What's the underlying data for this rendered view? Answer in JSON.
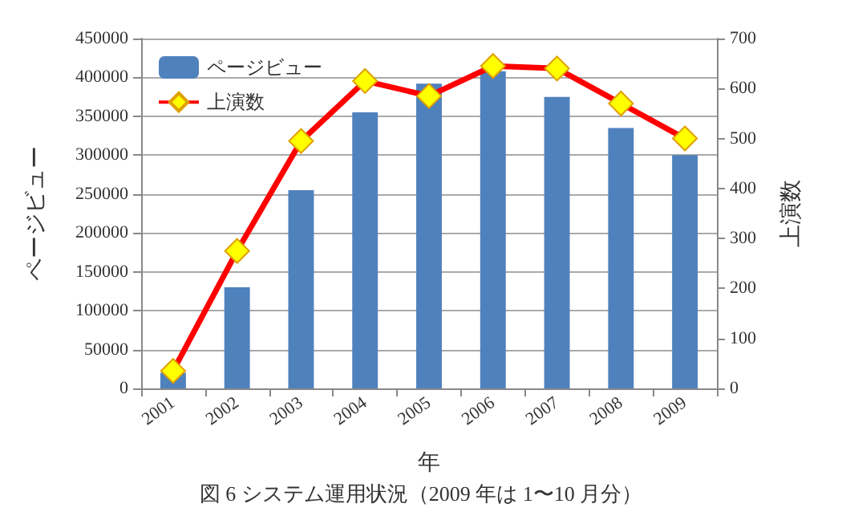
{
  "chart_data": {
    "type": "bar",
    "xlabel": "年",
    "ylabel": "ページビュー",
    "y2label": "上演数",
    "categories": [
      "2001",
      "2002",
      "2003",
      "2004",
      "2005",
      "2006",
      "2007",
      "2008",
      "2009"
    ],
    "series": [
      {
        "name": "ページビュー",
        "color": "#4f81bd",
        "values": [
          20000,
          130000,
          255000,
          355000,
          392000,
          408000,
          375000,
          335000,
          300000
        ]
      },
      {
        "name": "上演数",
        "type": "line",
        "axis": "y2",
        "color": "#ff0000",
        "marker": "diamond",
        "values": [
          35,
          275,
          495,
          615,
          585,
          645,
          640,
          570,
          500
        ]
      }
    ],
    "ylim": [
      0,
      450000
    ],
    "yticks": [
      0,
      50000,
      100000,
      150000,
      200000,
      250000,
      300000,
      350000,
      400000,
      450000
    ],
    "y2lim": [
      0,
      700
    ],
    "y2ticks": [
      0,
      100,
      200,
      300,
      400,
      500,
      600,
      700
    ],
    "grid": "y",
    "legend": "top left",
    "annotations": [
      "図 6 システム運用状況（2009 年は 1〜10 月分）"
    ]
  }
}
